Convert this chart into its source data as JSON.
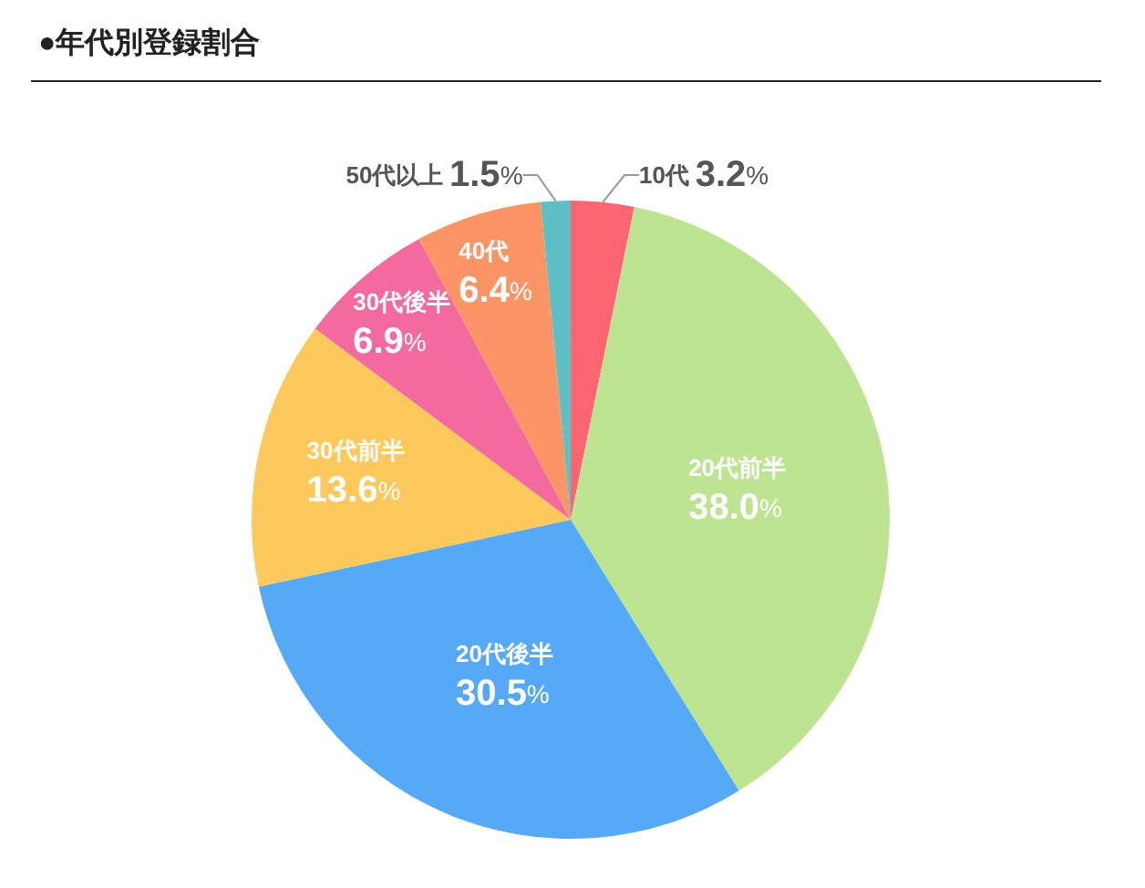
{
  "chart_data": {
    "type": "pie",
    "title": "●年代別登録割合",
    "categories": [
      "10代",
      "20代前半",
      "20代後半",
      "30代前半",
      "30代後半",
      "40代",
      "50代以上"
    ],
    "values": [
      3.2,
      38.0,
      30.5,
      13.6,
      6.9,
      6.4,
      1.5
    ],
    "colors": [
      "#fc6571",
      "#bde591",
      "#56a9f6",
      "#fdc95c",
      "#f36a9e",
      "#fc9566",
      "#5cc0c4"
    ],
    "value_labels": [
      "3.2%",
      "38.0%",
      "30.5%",
      "13.6%",
      "6.9%",
      "6.4%",
      "1.5%"
    ]
  }
}
